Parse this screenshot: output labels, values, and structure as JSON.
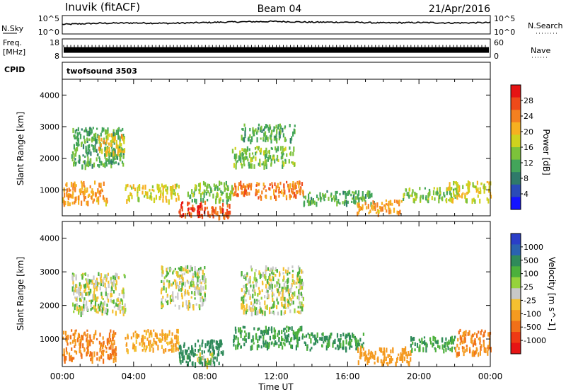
{
  "header": {
    "station": "Inuvik (fitACF)",
    "beam": "Beam 04",
    "date": "21/Apr/2016"
  },
  "top_panels": {
    "nsky_label": "N.Sky",
    "nsky_ticks": [
      "10^5",
      "10^0"
    ],
    "nsearch_label": "N.Search",
    "nsearch_ticks": [
      "10^5",
      "10^0"
    ],
    "freq_label": "Freq.",
    "freq_unit": "[MHz]",
    "freq_ticks": [
      "18",
      "8"
    ],
    "nave_label": "Nave",
    "nave_ticks": [
      "60",
      "0"
    ],
    "cpid_label": "CPID",
    "cpid_value": "twofsound 3503"
  },
  "colorbars": {
    "power": {
      "label": "Power [dB]",
      "ticks": [
        "28",
        "24",
        "20",
        "16",
        "12",
        "8",
        "4"
      ],
      "colors": [
        "#1414ff",
        "#2a4bb8",
        "#2f7a6a",
        "#43a55a",
        "#7cc23a",
        "#cfd21e",
        "#f6b020",
        "#f48020",
        "#ee4a1a",
        "#e61414"
      ]
    },
    "velocity": {
      "label": "Velocity [m s^-1]",
      "ticks": [
        "1000",
        "500",
        "100",
        "25",
        "-25",
        "-100",
        "-500",
        "-1000"
      ],
      "colors": [
        "#2a3ec8",
        "#2a62b0",
        "#2f8a5a",
        "#4cb03c",
        "#96d23c",
        "#c8c8c8",
        "#f4c030",
        "#f49a20",
        "#f07018",
        "#ee3a14",
        "#e61414"
      ]
    }
  },
  "chart_data": [
    {
      "type": "line",
      "title": "N.Sky",
      "note_right": "N.Search",
      "xlim": [
        0,
        24
      ],
      "ylim_log10": [
        0,
        5
      ],
      "series": [
        {
          "name": "N.Sky",
          "x": [
            0,
            2,
            4,
            6,
            8,
            10,
            12,
            14,
            16,
            18,
            20,
            22,
            24
          ],
          "y_log10": [
            2.6,
            2.9,
            3.0,
            2.9,
            3.1,
            3.3,
            3.4,
            3.2,
            3.2,
            3.0,
            3.1,
            3.0,
            3.1
          ]
        }
      ]
    },
    {
      "type": "line",
      "title": "Freq.",
      "note_right": "Nave",
      "xlim": [
        0,
        24
      ],
      "ylim": [
        8,
        18
      ],
      "series": [
        {
          "name": "Freq.",
          "x": [
            0,
            24
          ],
          "y": [
            12,
            12
          ]
        }
      ]
    },
    {
      "type": "heatmap",
      "title": "Power",
      "xlabel": "",
      "ylabel": "Slant Range [km]",
      "xlim": [
        0,
        24
      ],
      "ylim": [
        180,
        4500
      ],
      "yticks": [
        1000,
        2000,
        3000,
        4000
      ],
      "colorbar_label": "Power [dB]",
      "regions": [
        {
          "x": [
            0,
            2.5
          ],
          "y": [
            600,
            1300
          ],
          "value": 22
        },
        {
          "x": [
            0.5,
            3.5
          ],
          "y": [
            1800,
            3000
          ],
          "value": 12
        },
        {
          "x": [
            2.0,
            3.5
          ],
          "y": [
            2200,
            2800
          ],
          "value": 20
        },
        {
          "x": [
            3.5,
            6.5
          ],
          "y": [
            700,
            1200
          ],
          "value": 18
        },
        {
          "x": [
            6.5,
            8.0
          ],
          "y": [
            200,
            700
          ],
          "value": 28
        },
        {
          "x": [
            8.0,
            9.5
          ],
          "y": [
            200,
            600
          ],
          "value": 26
        },
        {
          "x": [
            7.0,
            9.5
          ],
          "y": [
            700,
            1300
          ],
          "value": 14
        },
        {
          "x": [
            9.5,
            13.5
          ],
          "y": [
            800,
            1300
          ],
          "value": 24
        },
        {
          "x": [
            9.5,
            13.0
          ],
          "y": [
            1800,
            2400
          ],
          "value": 14
        },
        {
          "x": [
            10.0,
            13.0
          ],
          "y": [
            2600,
            3100
          ],
          "value": 12
        },
        {
          "x": [
            13.5,
            17.5
          ],
          "y": [
            600,
            1000
          ],
          "value": 12
        },
        {
          "x": [
            16.5,
            19.0
          ],
          "y": [
            300,
            700
          ],
          "value": 22
        },
        {
          "x": [
            19.0,
            22.0
          ],
          "y": [
            700,
            1100
          ],
          "value": 14
        },
        {
          "x": [
            21.5,
            24.0
          ],
          "y": [
            700,
            1300
          ],
          "value": 18
        }
      ]
    },
    {
      "type": "heatmap",
      "title": "Velocity",
      "xlabel": "Time UT",
      "ylabel": "Slant Range [km]",
      "xlim": [
        0,
        24
      ],
      "ylim": [
        180,
        4500
      ],
      "yticks": [
        1000,
        2000,
        3000,
        4000
      ],
      "xticks": [
        "00:00",
        "04:00",
        "08:00",
        "12:00",
        "16:00",
        "20:00",
        "00:00"
      ],
      "colorbar_label": "Velocity [m s^-1]",
      "regions": [
        {
          "x": [
            0,
            3.0
          ],
          "y": [
            400,
            1300
          ],
          "value": -300
        },
        {
          "x": [
            0.5,
            3.5
          ],
          "y": [
            1800,
            3000
          ],
          "value": 0
        },
        {
          "x": [
            3.5,
            6.5
          ],
          "y": [
            700,
            1300
          ],
          "value": -120
        },
        {
          "x": [
            5.5,
            8.0
          ],
          "y": [
            2000,
            3200
          ],
          "value": 0
        },
        {
          "x": [
            6.5,
            9.0
          ],
          "y": [
            300,
            1000
          ],
          "value": 150
        },
        {
          "x": [
            7.5,
            8.5
          ],
          "y": [
            250,
            600
          ],
          "value": 0
        },
        {
          "x": [
            9.5,
            13.5
          ],
          "y": [
            800,
            1400
          ],
          "value": 100
        },
        {
          "x": [
            10.0,
            13.5
          ],
          "y": [
            1800,
            3200
          ],
          "value": 0
        },
        {
          "x": [
            13.5,
            17.0
          ],
          "y": [
            700,
            1200
          ],
          "value": 120
        },
        {
          "x": [
            16.5,
            19.5
          ],
          "y": [
            300,
            800
          ],
          "value": -200
        },
        {
          "x": [
            19.5,
            22.0
          ],
          "y": [
            700,
            1100
          ],
          "value": 100
        },
        {
          "x": [
            22.0,
            24.0
          ],
          "y": [
            600,
            1300
          ],
          "value": -300
        }
      ]
    }
  ]
}
